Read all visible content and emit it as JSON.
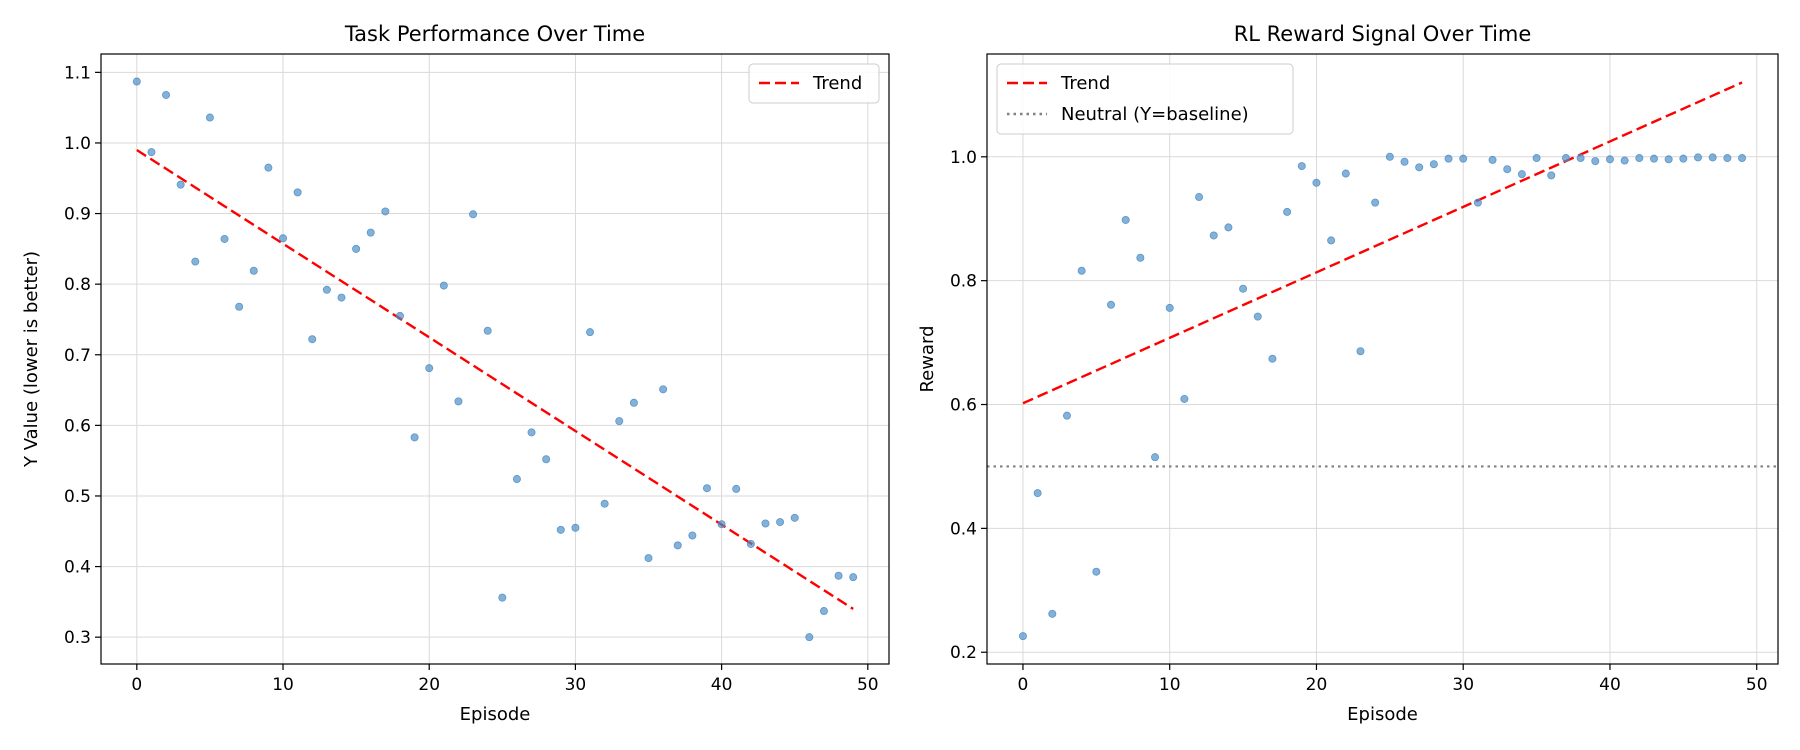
{
  "chart_data": [
    {
      "type": "scatter",
      "title": "Task Performance Over Time",
      "xlabel": "Episode",
      "ylabel": "Y Value (lower is better)",
      "xlim": [
        -2.45,
        51.45
      ],
      "ylim": [
        0.262,
        1.126
      ],
      "xticks": [
        0,
        10,
        20,
        30,
        40,
        50
      ],
      "yticks": [
        0.3,
        0.4,
        0.5,
        0.6,
        0.7,
        0.8,
        0.9,
        1.0,
        1.1
      ],
      "grid": true,
      "legend_position": "top-right",
      "point_color": "#4a8cc4",
      "x": [
        0,
        1,
        2,
        3,
        4,
        5,
        6,
        7,
        8,
        9,
        10,
        11,
        12,
        13,
        14,
        15,
        16,
        17,
        18,
        19,
        20,
        21,
        22,
        23,
        24,
        25,
        26,
        27,
        28,
        29,
        30,
        31,
        32,
        33,
        34,
        35,
        36,
        37,
        38,
        39,
        40,
        41,
        42,
        43,
        44,
        45,
        46,
        47,
        48,
        49
      ],
      "y": [
        1.087,
        0.987,
        1.068,
        0.941,
        0.832,
        1.036,
        0.864,
        0.768,
        0.819,
        0.965,
        0.865,
        0.93,
        0.722,
        0.792,
        0.781,
        0.85,
        0.873,
        0.903,
        0.755,
        0.583,
        0.681,
        0.798,
        0.634,
        0.899,
        0.734,
        0.356,
        0.524,
        0.59,
        0.552,
        0.452,
        0.455,
        0.732,
        0.489,
        0.606,
        0.632,
        0.412,
        0.651,
        0.43,
        0.444,
        0.511,
        0.46,
        0.51,
        0.432,
        0.461,
        0.463,
        0.469,
        0.3,
        0.337,
        0.387,
        0.385
      ],
      "lines": [
        {
          "name": "Trend",
          "color": "#ff0000",
          "style": "dashed",
          "x": [
            0,
            49
          ],
          "y": [
            0.99,
            0.34
          ]
        }
      ],
      "legend": [
        {
          "label": "Trend",
          "color": "#ff0000",
          "style": "dashed"
        }
      ]
    },
    {
      "type": "scatter",
      "title": "RL Reward Signal Over Time",
      "xlabel": "Episode",
      "ylabel": "Reward",
      "xlim": [
        -2.45,
        51.45
      ],
      "ylim": [
        0.181,
        1.166
      ],
      "xticks": [
        0,
        10,
        20,
        30,
        40,
        50
      ],
      "yticks": [
        0.2,
        0.4,
        0.6,
        0.8,
        1.0
      ],
      "grid": true,
      "legend_position": "top-left",
      "point_color": "#4a8cc4",
      "x": [
        0,
        1,
        2,
        3,
        4,
        5,
        6,
        7,
        8,
        9,
        10,
        11,
        12,
        13,
        14,
        15,
        16,
        17,
        18,
        19,
        20,
        21,
        22,
        23,
        24,
        25,
        26,
        27,
        28,
        29,
        30,
        31,
        32,
        33,
        34,
        35,
        36,
        37,
        38,
        39,
        40,
        41,
        42,
        43,
        44,
        45,
        46,
        47,
        48,
        49
      ],
      "y": [
        0.226,
        0.457,
        0.262,
        0.582,
        0.816,
        0.33,
        0.761,
        0.898,
        0.837,
        0.515,
        0.756,
        0.609,
        0.935,
        0.873,
        0.886,
        0.787,
        0.742,
        0.674,
        0.911,
        0.985,
        0.958,
        0.865,
        0.973,
        0.686,
        0.926,
        1.0,
        0.992,
        0.983,
        0.988,
        0.997,
        0.997,
        0.926,
        0.995,
        0.98,
        0.972,
        0.998,
        0.97,
        0.998,
        0.998,
        0.993,
        0.996,
        0.994,
        0.998,
        0.997,
        0.996,
        0.997,
        0.999,
        0.999,
        0.998,
        0.998
      ],
      "lines": [
        {
          "name": "Trend",
          "color": "#ff0000",
          "style": "dashed",
          "x": [
            0,
            49
          ],
          "y": [
            0.602,
            1.12
          ]
        },
        {
          "name": "Neutral (Y=baseline)",
          "color": "#808080",
          "style": "dotted",
          "y_value": 0.5
        }
      ],
      "legend": [
        {
          "label": "Trend",
          "color": "#ff0000",
          "style": "dashed"
        },
        {
          "label": "Neutral (Y=baseline)",
          "color": "#808080",
          "style": "dotted"
        }
      ]
    }
  ]
}
